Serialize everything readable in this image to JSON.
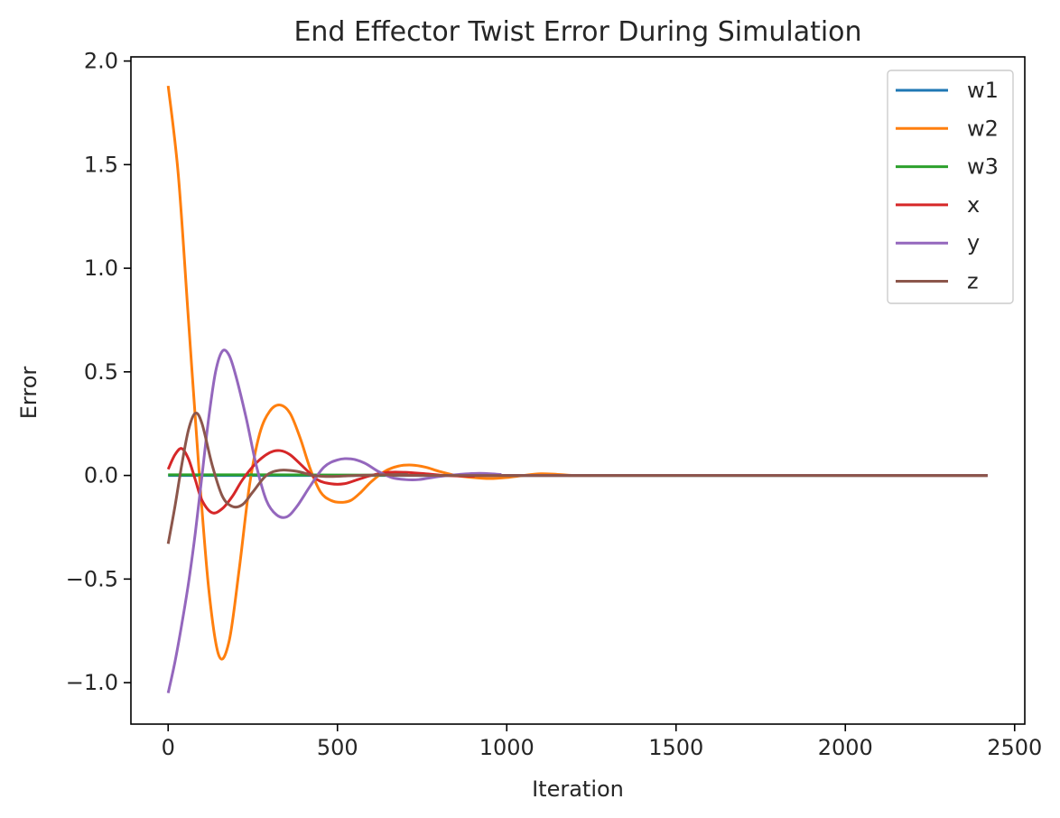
{
  "chart_data": {
    "type": "line",
    "title": "End Effector Twist Error During Simulation",
    "xlabel": "Iteration",
    "ylabel": "Error",
    "xlim": [
      -110,
      2530
    ],
    "ylim": [
      -1.2,
      2.02
    ],
    "xticks": [
      0,
      500,
      1000,
      1500,
      2000,
      2500
    ],
    "xtick_labels": [
      "0",
      "500",
      "1000",
      "1500",
      "2000",
      "2500"
    ],
    "yticks": [
      -1.0,
      -0.5,
      0.0,
      0.5,
      1.0,
      1.5,
      2.0
    ],
    "ytick_labels": [
      "−1.0",
      "−0.5",
      "0.0",
      "0.5",
      "1.0",
      "1.5",
      "2.0"
    ],
    "grid": false,
    "legend_position": "top-right",
    "series": [
      {
        "name": "w1",
        "color": "#1f77b4",
        "points": [
          [
            0,
            0
          ],
          [
            200,
            0
          ],
          [
            500,
            0
          ],
          [
            1000,
            0
          ],
          [
            1500,
            0
          ],
          [
            2000,
            0
          ],
          [
            2420,
            0
          ]
        ]
      },
      {
        "name": "w2",
        "color": "#ff7f0e",
        "points": [
          [
            0,
            1.88
          ],
          [
            30,
            1.45
          ],
          [
            60,
            0.75
          ],
          [
            90,
            0.05
          ],
          [
            120,
            -0.55
          ],
          [
            150,
            -0.87
          ],
          [
            180,
            -0.8
          ],
          [
            210,
            -0.45
          ],
          [
            240,
            -0.05
          ],
          [
            270,
            0.2
          ],
          [
            300,
            0.31
          ],
          [
            330,
            0.34
          ],
          [
            360,
            0.3
          ],
          [
            390,
            0.18
          ],
          [
            420,
            0.03
          ],
          [
            450,
            -0.08
          ],
          [
            480,
            -0.12
          ],
          [
            510,
            -0.13
          ],
          [
            540,
            -0.12
          ],
          [
            570,
            -0.08
          ],
          [
            600,
            -0.03
          ],
          [
            640,
            0.02
          ],
          [
            680,
            0.045
          ],
          [
            720,
            0.05
          ],
          [
            760,
            0.04
          ],
          [
            800,
            0.02
          ],
          [
            850,
            0.0
          ],
          [
            900,
            -0.01
          ],
          [
            950,
            -0.015
          ],
          [
            1000,
            -0.01
          ],
          [
            1050,
            0.0
          ],
          [
            1100,
            0.008
          ],
          [
            1150,
            0.005
          ],
          [
            1200,
            0.0
          ],
          [
            1300,
            0.0
          ],
          [
            2420,
            0.0
          ]
        ]
      },
      {
        "name": "w3",
        "color": "#2ca02c",
        "points": [
          [
            0,
            0.003
          ],
          [
            300,
            0.003
          ],
          [
            700,
            0.001
          ],
          [
            1000,
            0.0
          ],
          [
            2420,
            0.0
          ]
        ]
      },
      {
        "name": "x",
        "color": "#d62728",
        "points": [
          [
            0,
            0.03
          ],
          [
            20,
            0.1
          ],
          [
            40,
            0.13
          ],
          [
            60,
            0.08
          ],
          [
            80,
            -0.02
          ],
          [
            100,
            -0.12
          ],
          [
            130,
            -0.18
          ],
          [
            160,
            -0.16
          ],
          [
            190,
            -0.1
          ],
          [
            220,
            -0.02
          ],
          [
            260,
            0.06
          ],
          [
            300,
            0.11
          ],
          [
            330,
            0.12
          ],
          [
            360,
            0.1
          ],
          [
            400,
            0.04
          ],
          [
            440,
            -0.02
          ],
          [
            480,
            -0.04
          ],
          [
            520,
            -0.04
          ],
          [
            560,
            -0.02
          ],
          [
            600,
            0.0
          ],
          [
            650,
            0.015
          ],
          [
            700,
            0.015
          ],
          [
            760,
            0.008
          ],
          [
            820,
            0.0
          ],
          [
            900,
            -0.004
          ],
          [
            1000,
            0.0
          ],
          [
            2420,
            0.0
          ]
        ]
      },
      {
        "name": "y",
        "color": "#9467bd",
        "points": [
          [
            0,
            -1.05
          ],
          [
            20,
            -0.9
          ],
          [
            40,
            -0.72
          ],
          [
            60,
            -0.52
          ],
          [
            80,
            -0.28
          ],
          [
            100,
            0.0
          ],
          [
            120,
            0.28
          ],
          [
            140,
            0.5
          ],
          [
            160,
            0.6
          ],
          [
            180,
            0.58
          ],
          [
            200,
            0.48
          ],
          [
            230,
            0.28
          ],
          [
            260,
            0.05
          ],
          [
            290,
            -0.12
          ],
          [
            320,
            -0.19
          ],
          [
            350,
            -0.2
          ],
          [
            380,
            -0.15
          ],
          [
            420,
            -0.05
          ],
          [
            460,
            0.04
          ],
          [
            500,
            0.075
          ],
          [
            540,
            0.08
          ],
          [
            580,
            0.06
          ],
          [
            620,
            0.02
          ],
          [
            660,
            -0.01
          ],
          [
            700,
            -0.02
          ],
          [
            740,
            -0.02
          ],
          [
            800,
            -0.005
          ],
          [
            860,
            0.005
          ],
          [
            920,
            0.01
          ],
          [
            980,
            0.005
          ],
          [
            1050,
            0.0
          ],
          [
            2420,
            0.0
          ]
        ]
      },
      {
        "name": "z",
        "color": "#8c564b",
        "points": [
          [
            0,
            -0.33
          ],
          [
            20,
            -0.15
          ],
          [
            40,
            0.05
          ],
          [
            60,
            0.22
          ],
          [
            80,
            0.3
          ],
          [
            100,
            0.25
          ],
          [
            130,
            0.05
          ],
          [
            160,
            -0.1
          ],
          [
            190,
            -0.15
          ],
          [
            220,
            -0.14
          ],
          [
            250,
            -0.08
          ],
          [
            290,
            0.0
          ],
          [
            330,
            0.025
          ],
          [
            380,
            0.02
          ],
          [
            430,
            0.0
          ],
          [
            480,
            -0.005
          ],
          [
            560,
            0.0
          ],
          [
            700,
            0.005
          ],
          [
            800,
            0.0
          ],
          [
            2420,
            0.0
          ]
        ]
      }
    ]
  }
}
